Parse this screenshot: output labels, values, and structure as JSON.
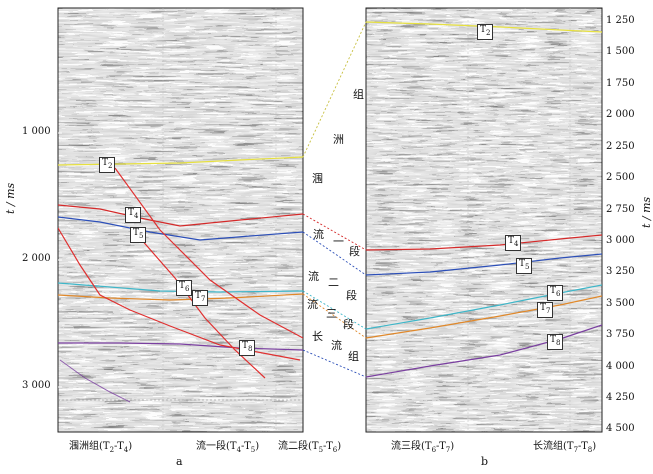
{
  "panel_a": {
    "letter": "a",
    "y_axis_title": "t / ms",
    "ticks": [
      "1 000",
      "2 000",
      "3 000"
    ],
    "bottom_labels": [
      {
        "main": "涠洲组(T",
        "s1": "2",
        "mid": "-T",
        "s2": "4",
        "end": ")"
      },
      {
        "main": "流一段(T",
        "s1": "4",
        "mid": "-T",
        "s2": "5",
        "end": ")"
      },
      {
        "main": "流二段(T",
        "s1": "5",
        "mid": "-T",
        "s2": "6",
        "end": ")"
      }
    ],
    "horizon_labels": [
      {
        "base": "T",
        "sub": "2"
      },
      {
        "base": "T",
        "sub": "4"
      },
      {
        "base": "T",
        "sub": "5"
      },
      {
        "base": "T",
        "sub": "6"
      },
      {
        "base": "T",
        "sub": "7"
      },
      {
        "base": "T",
        "sub": "8"
      }
    ]
  },
  "panel_b": {
    "letter": "b",
    "y_axis_title": "t / ms",
    "ticks": [
      "1 250",
      "1 500",
      "1 750",
      "2 000",
      "2 250",
      "2 500",
      "2 750",
      "3 000",
      "3 250",
      "3 500",
      "3 750",
      "4 000",
      "4 250",
      "4 500"
    ],
    "bottom_labels": [
      {
        "main": "流三段(T",
        "s1": "6",
        "mid": "-T",
        "s2": "7",
        "end": ")"
      },
      {
        "main": "长流组(T",
        "s1": "7",
        "mid": "-T",
        "s2": "8",
        "end": ")"
      }
    ],
    "horizon_labels": [
      {
        "base": "T",
        "sub": "2"
      },
      {
        "base": "T",
        "sub": "4"
      },
      {
        "base": "T",
        "sub": "5"
      },
      {
        "base": "T",
        "sub": "6"
      },
      {
        "base": "T",
        "sub": "7"
      },
      {
        "base": "T",
        "sub": "8"
      }
    ]
  },
  "strat_chars": [
    "组",
    "洲",
    "涠",
    "流",
    "一",
    "段",
    "流",
    "二",
    "段",
    "流",
    "三",
    "段",
    "长",
    "流",
    "组"
  ],
  "colors": {
    "T2": "#e6e040",
    "T4": "#d42a2a",
    "T5": "#2c4fb8",
    "T6": "#3fb6c8",
    "T7": "#e0882a",
    "T8": "#7a3fa0",
    "fault": "#e03030"
  }
}
